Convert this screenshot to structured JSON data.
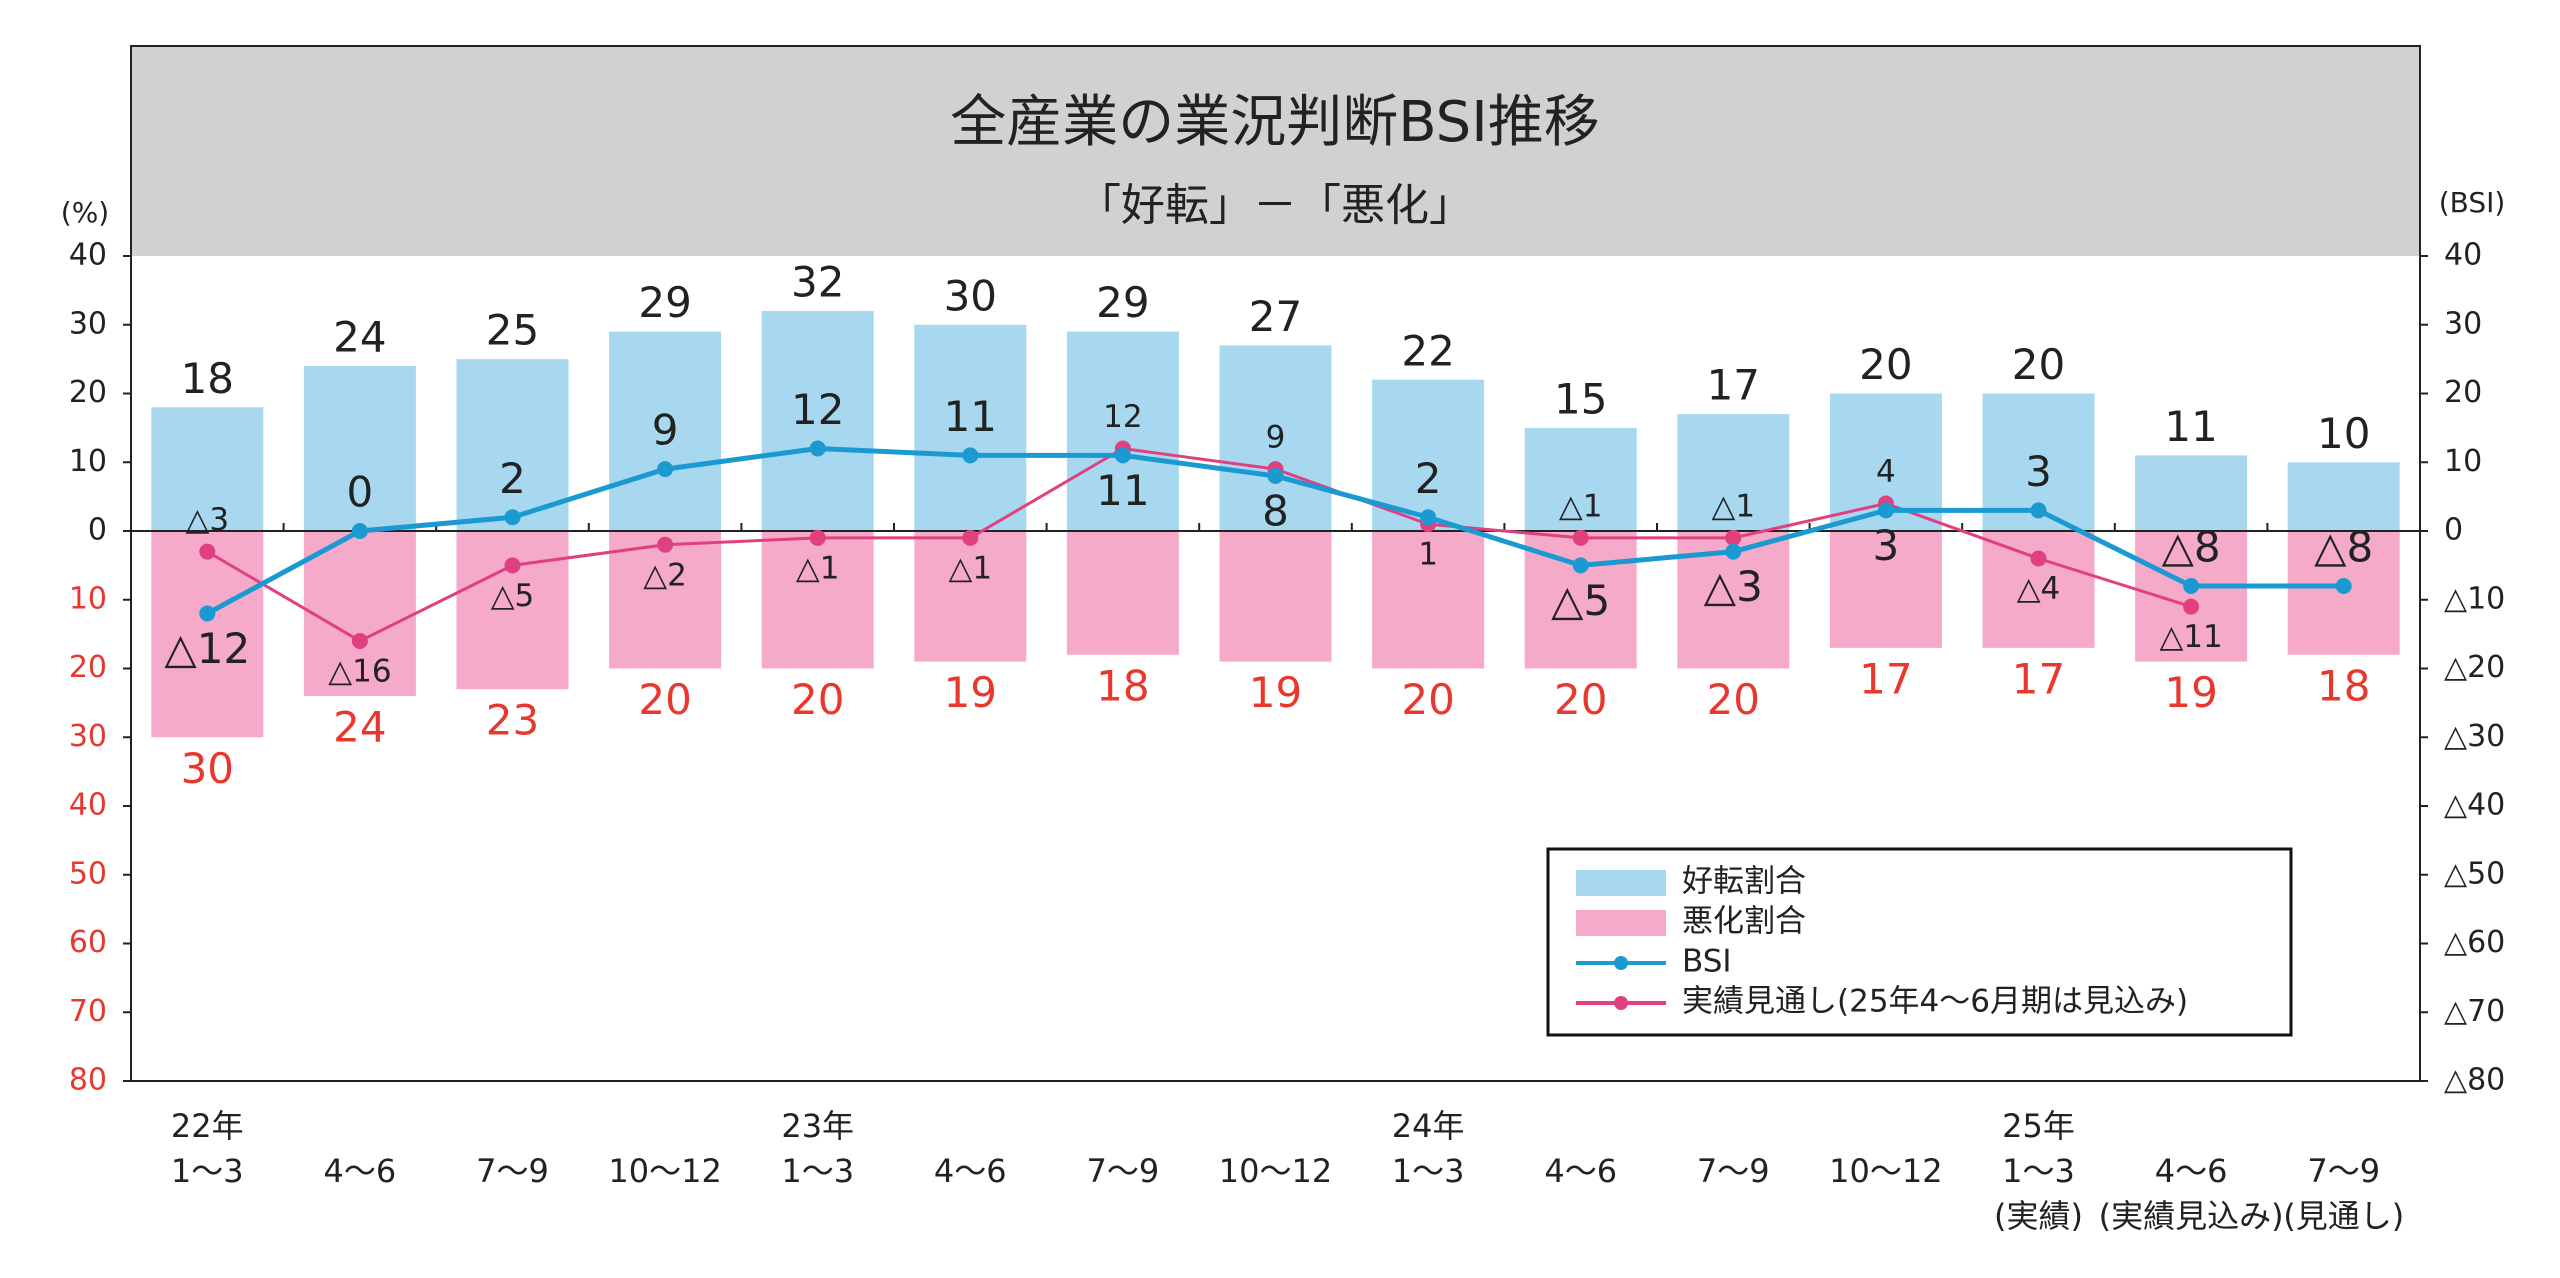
{
  "chart_data": {
    "type": "bar",
    "title": "全産業の業況判断BSI推移",
    "subtitle": "「好転」－「悪化」",
    "y_label": "(%)",
    "y2_label": "(BSI)",
    "categories": [
      [
        "22年",
        "1～3"
      ],
      [
        "4～6"
      ],
      [
        "7～9"
      ],
      [
        "10～12"
      ],
      [
        "23年",
        "1～3"
      ],
      [
        "4～6"
      ],
      [
        "7～9"
      ],
      [
        "10～12"
      ],
      [
        "24年",
        "1～3"
      ],
      [
        "4～6"
      ],
      [
        "7～9"
      ],
      [
        "10～12"
      ],
      [
        "25年",
        "1～3",
        "(実績)"
      ],
      [
        "4～6",
        "(実績見込み)"
      ],
      [
        "7～9",
        "(見通し)"
      ]
    ],
    "ylim": [
      -80,
      40
    ],
    "yticks": [
      40,
      30,
      20,
      10,
      0,
      {
        "value": -10,
        "label": "10"
      },
      {
        "value": -20,
        "label": "20"
      },
      {
        "value": -30,
        "label": "30"
      },
      {
        "value": -40,
        "label": "40"
      },
      {
        "value": -50,
        "label": "50"
      },
      {
        "value": -60,
        "label": "60"
      },
      {
        "value": -70,
        "label": "70"
      },
      {
        "value": -80,
        "label": "80"
      }
    ],
    "y2lim": [
      -80,
      40
    ],
    "y2ticks": [
      40,
      30,
      20,
      10,
      0,
      {
        "value": -10,
        "label": "△10"
      },
      {
        "value": -20,
        "label": "△20"
      },
      {
        "value": -30,
        "label": "△30"
      },
      {
        "value": -40,
        "label": "△40"
      },
      {
        "value": -50,
        "label": "△50"
      },
      {
        "value": -60,
        "label": "△60"
      },
      {
        "value": -70,
        "label": "△70"
      },
      {
        "value": -80,
        "label": "△80"
      }
    ],
    "legend": "lower right",
    "series": [
      {
        "name": "好転割合",
        "type": "bar",
        "color": "#a8d8ef",
        "label_color": "#222222",
        "values": [
          18,
          24,
          25,
          29,
          32,
          30,
          29,
          27,
          22,
          15,
          17,
          20,
          20,
          11,
          10
        ]
      },
      {
        "name": "悪化割合",
        "type": "bar",
        "color": "#f5aac9",
        "label_color": "#e8382e",
        "values": [
          -30,
          -24,
          -23,
          -20,
          -20,
          -19,
          -18,
          -19,
          -20,
          -20,
          -20,
          -17,
          -17,
          -19,
          -18
        ],
        "value_labels": [
          "30",
          "24",
          "23",
          "20",
          "20",
          "19",
          "18",
          "19",
          "20",
          "20",
          "20",
          "17",
          "17",
          "19",
          "18"
        ]
      },
      {
        "name": "BSI",
        "type": "line",
        "axis": "y2",
        "color": "#1b9ad2",
        "label_color": "#222222",
        "values": [
          -12,
          0,
          2,
          9,
          12,
          11,
          11,
          8,
          2,
          -5,
          -3,
          3,
          3,
          -8,
          -8
        ],
        "value_labels": [
          "△12",
          "0",
          "2",
          "9",
          "12",
          "11",
          "11",
          "8",
          "2",
          "△5",
          "△3",
          "3",
          "3",
          "△8",
          "△8"
        ]
      },
      {
        "name": "実績見通し(25年4～6月期は見込み)",
        "type": "line",
        "axis": "y2",
        "color": "#e0407f",
        "label_color": "#222222",
        "values": [
          -3,
          -16,
          -5,
          -2,
          -1,
          -1,
          12,
          9,
          1,
          -1,
          -1,
          4,
          -4,
          -11,
          null
        ],
        "value_labels": [
          "△3",
          "△16",
          "△5",
          "△2",
          "△1",
          "△1",
          "12",
          "9",
          "1",
          "△1",
          "△1",
          "4",
          "△4",
          "△11",
          null
        ]
      }
    ]
  }
}
